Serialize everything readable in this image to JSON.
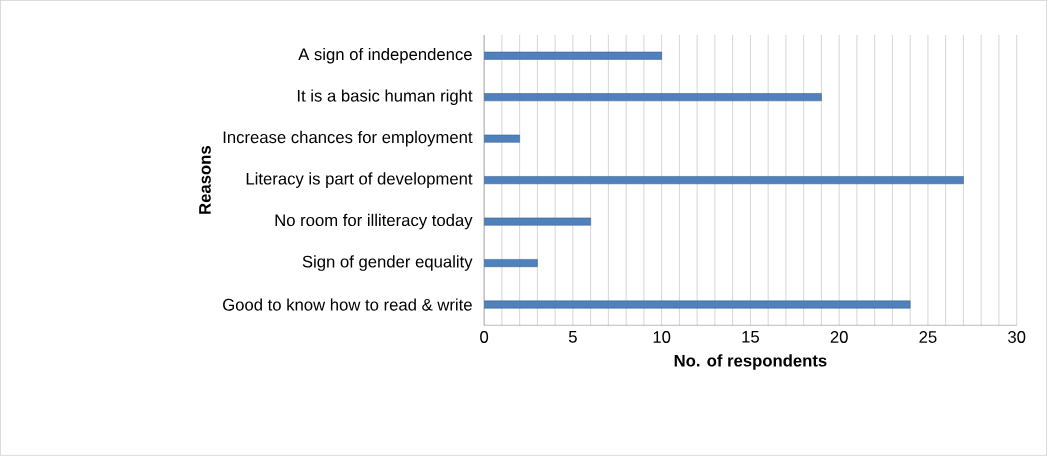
{
  "chart_data": {
    "type": "bar",
    "orientation": "horizontal",
    "xlabel": "No. of respondents",
    "ylabel": "Reasons",
    "categories": [
      "A sign of independence",
      "It is a basic human right",
      "Increase chances for employment",
      "Literacy is part of development",
      "No room for illiteracy today",
      "Sign of gender equality",
      "Good to know how to read & write"
    ],
    "values": [
      10,
      19,
      2,
      27,
      6,
      3,
      24
    ],
    "color": "#4f81bd",
    "xlim": [
      0,
      30
    ],
    "xticks": [
      0,
      {
        "value": 1,
        "label": null
      },
      {
        "value": 2,
        "label": null
      },
      {
        "value": 3,
        "label": null
      },
      {
        "value": 4,
        "label": null
      },
      5,
      {
        "value": 6,
        "label": null
      },
      {
        "value": 7,
        "label": null
      },
      {
        "value": 8,
        "label": null
      },
      {
        "value": 9,
        "label": null
      },
      10,
      {
        "value": 11,
        "label": null
      },
      {
        "value": 12,
        "label": null
      },
      {
        "value": 13,
        "label": null
      },
      {
        "value": 14,
        "label": null
      },
      15,
      {
        "value": 16,
        "label": null
      },
      {
        "value": 17,
        "label": null
      },
      {
        "value": 18,
        "label": null
      },
      {
        "value": 19,
        "label": null
      },
      20,
      {
        "value": 21,
        "label": null
      },
      {
        "value": 22,
        "label": null
      },
      {
        "value": 23,
        "label": null
      },
      {
        "value": 24,
        "label": null
      },
      25,
      {
        "value": 26,
        "label": null
      },
      {
        "value": 27,
        "label": null
      },
      {
        "value": 28,
        "label": null
      },
      {
        "value": 29,
        "label": null
      },
      30
    ],
    "grid": "x"
  }
}
